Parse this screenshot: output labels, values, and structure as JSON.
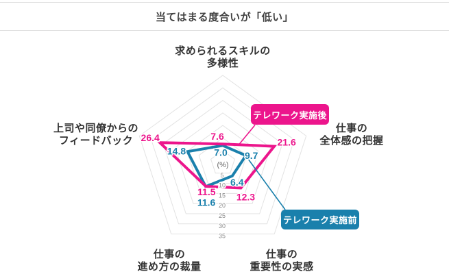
{
  "header": {
    "title": "当てはまる度合いが「低い」"
  },
  "chart_data": {
    "type": "radar",
    "title": "当てはまる度合いが「低い」",
    "unit_label": "(%)",
    "scale": {
      "min": 0,
      "max": 35,
      "step": 5,
      "ring_values": [
        5,
        10,
        15,
        20,
        25,
        30,
        35
      ]
    },
    "grid": "pentagon-rings-no-spokes",
    "axes": [
      {
        "id": "skill-diversity",
        "label_lines": [
          "求められるスキルの",
          "多様性"
        ]
      },
      {
        "id": "overall-grasp",
        "label_lines": [
          "仕事の",
          "全体感の把握"
        ]
      },
      {
        "id": "importance-feel",
        "label_lines": [
          "仕事の",
          "重要性の実感"
        ]
      },
      {
        "id": "discretion",
        "label_lines": [
          "仕事の",
          "進め方の裁量"
        ]
      },
      {
        "id": "feedback",
        "label_lines": [
          "上司や同僚からの",
          "フィードバック"
        ]
      }
    ],
    "series": [
      {
        "name": "テレワーク実施後",
        "color": "#EC158C",
        "values": [
          7.6,
          21.6,
          12.3,
          11.5,
          26.4
        ]
      },
      {
        "name": "テレワーク実施前",
        "color": "#1A80AC",
        "values": [
          7.0,
          9.7,
          6.4,
          11.6,
          14.8
        ]
      }
    ],
    "legend_callouts": [
      {
        "label": "テレワーク実施後",
        "color": "#EC158C"
      },
      {
        "label": "テレワーク実施前",
        "color": "#1A80AC"
      }
    ]
  },
  "colors": {
    "grid_line": "#e2e2e2",
    "axis_label": "#333333",
    "scale_label": "#888888",
    "unit_label": "#666666"
  }
}
